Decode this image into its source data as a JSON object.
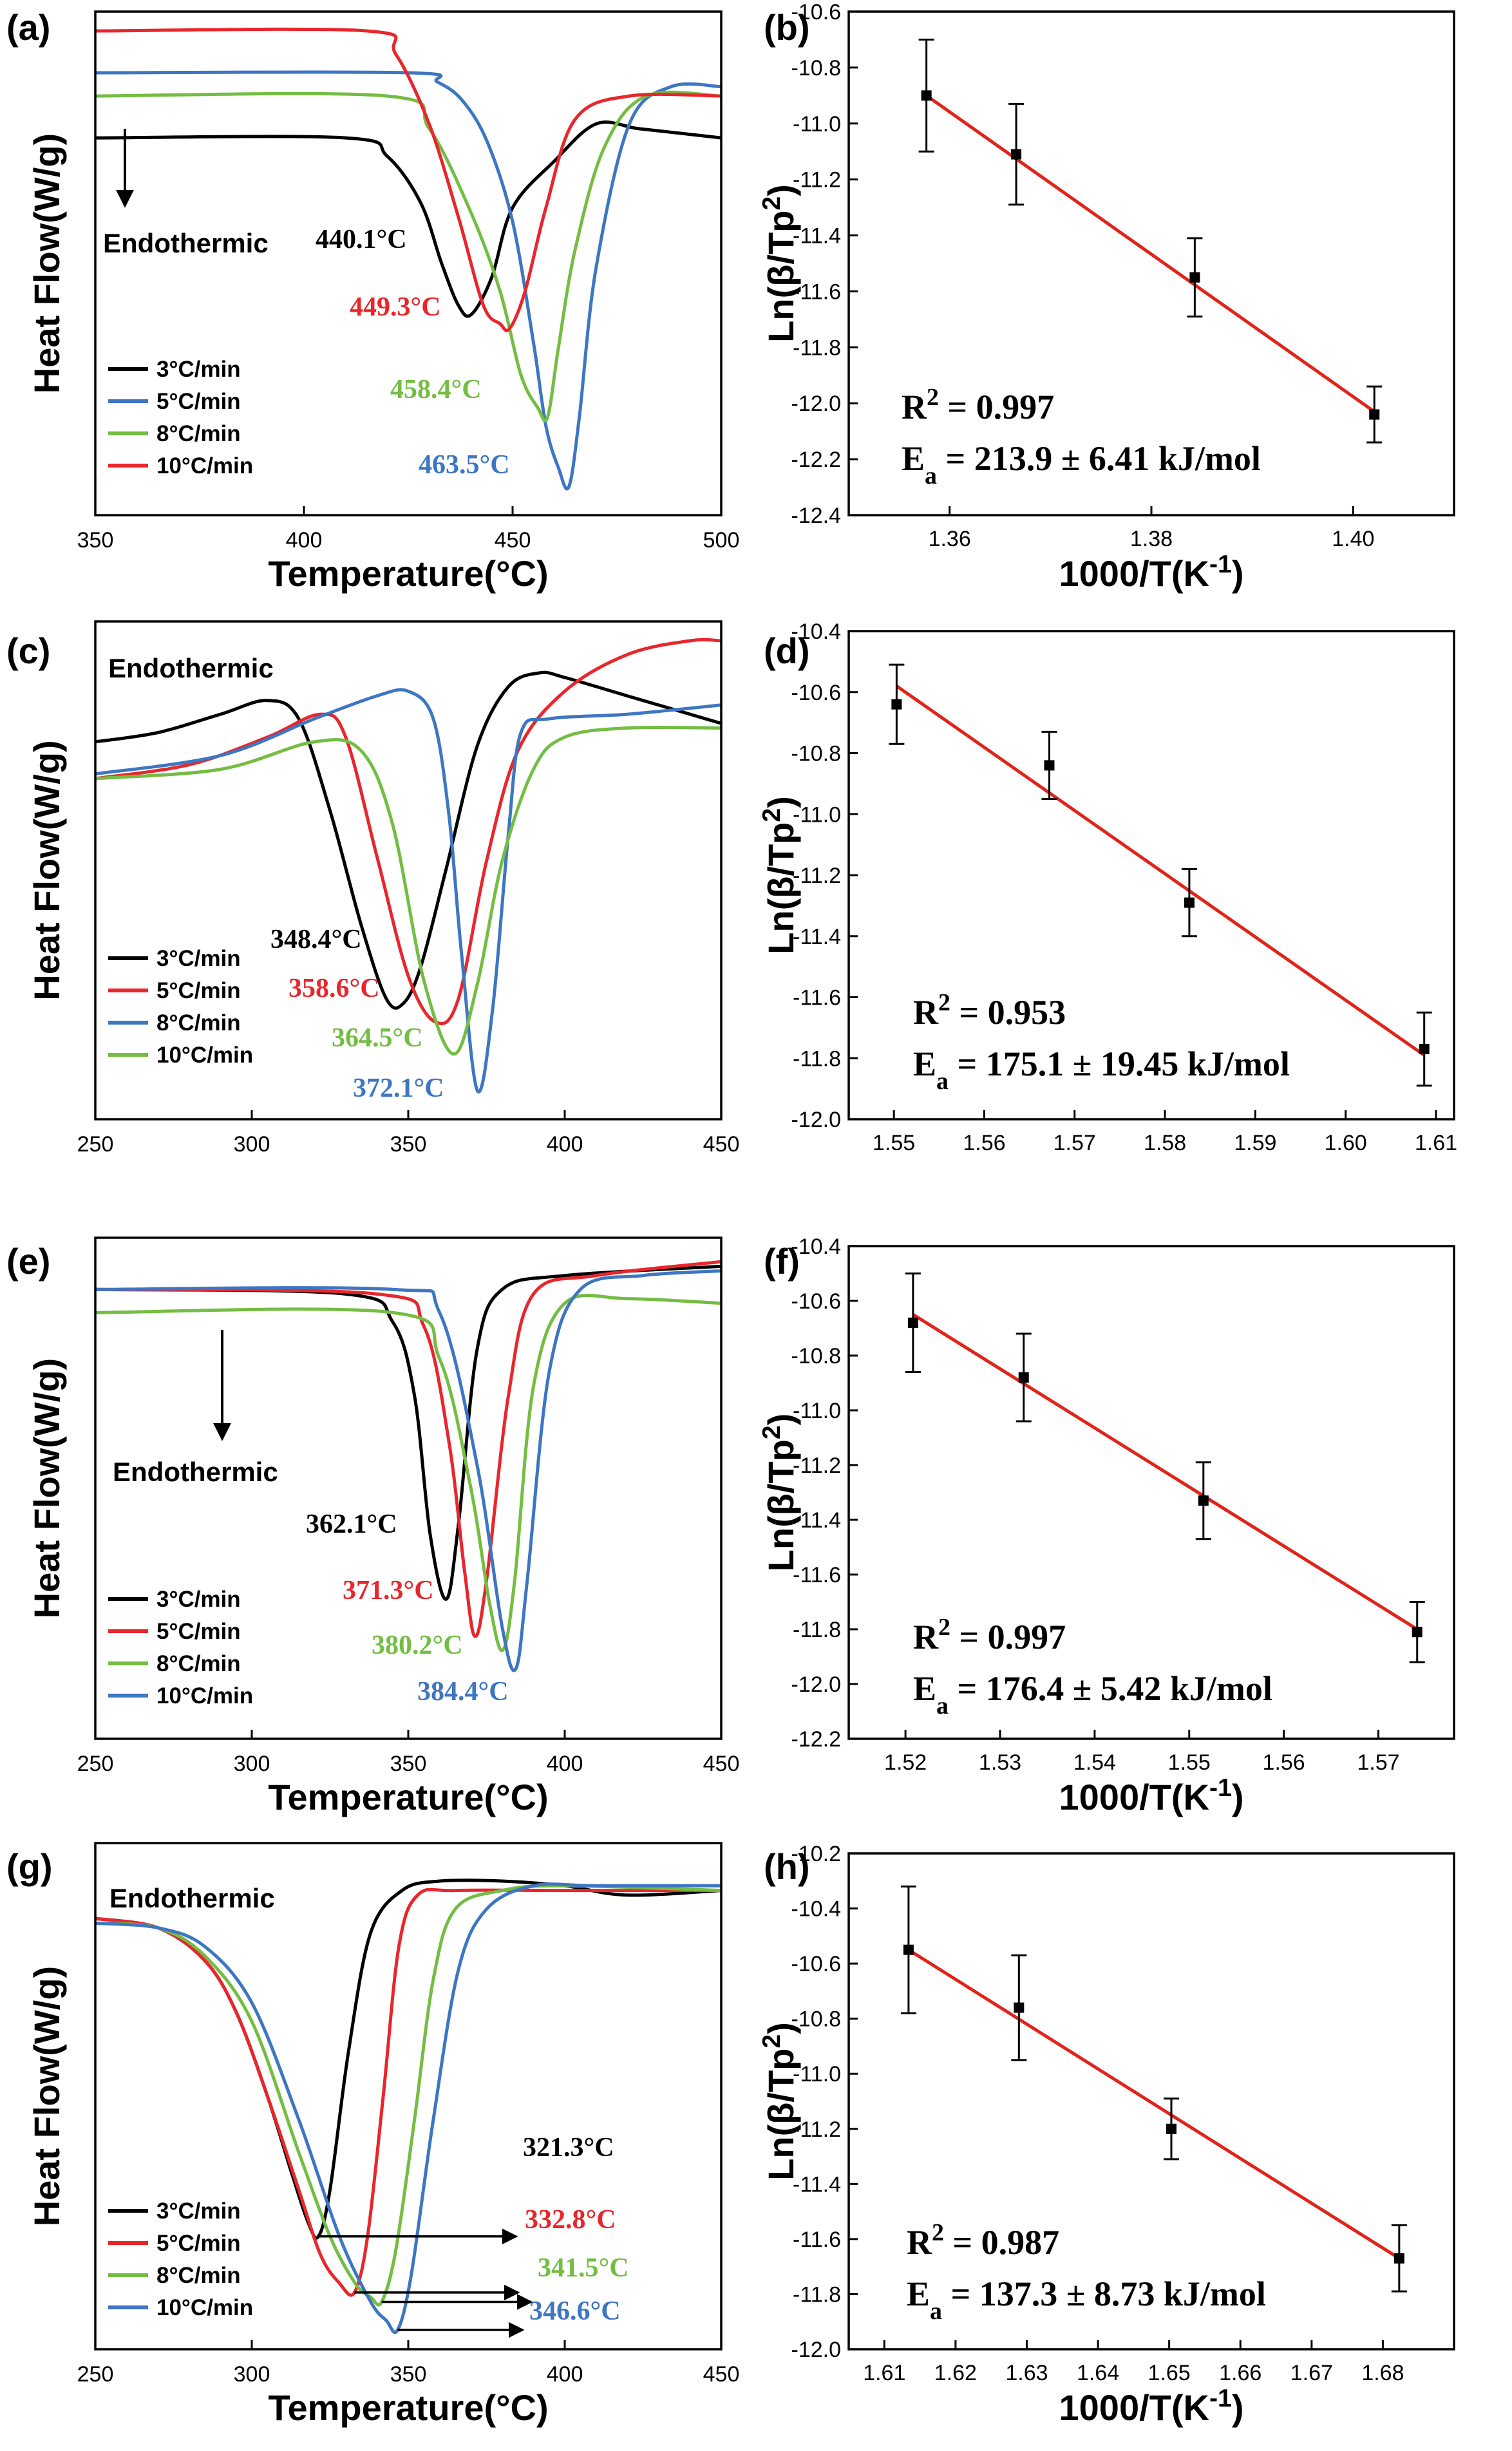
{
  "figure": {
    "background": "#ffffff"
  },
  "colors": {
    "black": "#000000",
    "red": "#e8262c",
    "green": "#74bd43",
    "blue": "#3d76c2",
    "fit": "#e2231a"
  },
  "chart_data": [
    {
      "id": "a",
      "type": "line",
      "panel_label": "(a)",
      "xlabel": "Temperature(°C)",
      "ylabel": "Heat Flow(W/g)",
      "xlim": [
        350,
        500
      ],
      "xticks": [
        350,
        400,
        450,
        500
      ],
      "endothermic": {
        "text": "Endothermic",
        "arrow": "down"
      },
      "legend": [
        "3°C/min",
        "5°C/min",
        "8°C/min",
        "10°C/min"
      ],
      "series": [
        {
          "name": "3°C/min",
          "color": "#000000",
          "peak_x": 440.1,
          "x": [
            350,
            410,
            420,
            428,
            433,
            437,
            440.1,
            445,
            450,
            460,
            470,
            480,
            490,
            500
          ],
          "y": [
            0.77,
            0.77,
            0.73,
            0.63,
            0.5,
            0.41,
            0.39,
            0.47,
            0.62,
            0.72,
            0.8,
            0.79,
            0.78,
            0.77
          ]
        },
        {
          "name": "5°C/min",
          "color": "#3d76c2",
          "peak_x": 463.5,
          "x": [
            350,
            425,
            432,
            438,
            444,
            450,
            455,
            458,
            461,
            463.5,
            466,
            470,
            478,
            488,
            500
          ],
          "y": [
            0.91,
            0.91,
            0.89,
            0.85,
            0.76,
            0.59,
            0.33,
            0.15,
            0.06,
            0.02,
            0.17,
            0.49,
            0.8,
            0.88,
            0.88
          ]
        },
        {
          "name": "8°C/min",
          "color": "#74bd43",
          "peak_x": 458.4,
          "x": [
            350,
            420,
            430,
            440,
            447,
            452,
            456,
            458.4,
            461,
            465,
            472,
            482,
            500
          ],
          "y": [
            0.86,
            0.86,
            0.79,
            0.61,
            0.44,
            0.26,
            0.19,
            0.17,
            0.32,
            0.53,
            0.75,
            0.86,
            0.86
          ]
        },
        {
          "name": "10°C/min",
          "color": "#e8262c",
          "peak_x": 449.3,
          "x": [
            350,
            415,
            422,
            430,
            437,
            443,
            447,
            449.3,
            453,
            458,
            465,
            478,
            500
          ],
          "y": [
            1.0,
            1.0,
            0.95,
            0.8,
            0.6,
            0.41,
            0.37,
            0.36,
            0.44,
            0.62,
            0.81,
            0.86,
            0.86
          ]
        }
      ],
      "annotations": [
        {
          "text": "440.1°C",
          "color": "#000000"
        },
        {
          "text": "449.3°C",
          "color": "#e8262c"
        },
        {
          "text": "458.4°C",
          "color": "#74bd43"
        },
        {
          "text": "463.5°C",
          "color": "#3d76c2"
        }
      ]
    },
    {
      "id": "b",
      "type": "scatter",
      "panel_label": "(b)",
      "xlabel": "1000/T(K⁻¹)",
      "ylabel": "Ln(β/Tp²)",
      "xlim": [
        1.35,
        1.41
      ],
      "ylim": [
        -12.4,
        -10.6
      ],
      "xticks": [
        1.36,
        1.38,
        1.4
      ],
      "xticklabels": [
        "1.36",
        "1.38",
        "1.40"
      ],
      "yticks": [
        -12.4,
        -12.2,
        -12.0,
        -11.8,
        -11.6,
        -11.4,
        -11.2,
        -11.0,
        -10.8,
        -10.6
      ],
      "yticklabels": [
        "-12.4",
        "-12.2",
        "-12.0",
        "-11.8",
        "-11.6",
        "-11.4",
        "-11.2",
        "-11.0",
        "-10.8",
        "-10.6"
      ],
      "x": [
        1.3577,
        1.3666,
        1.3843,
        1.4021
      ],
      "y": [
        -10.9,
        -11.11,
        -11.55,
        -12.04
      ],
      "yerr": [
        0.2,
        0.18,
        0.14,
        0.1
      ],
      "fit": {
        "x": [
          1.3577,
          1.4021
        ],
        "y": [
          -10.9,
          -12.03
        ]
      },
      "r2": "R² = 0.997",
      "ea": "Ea = 213.9 ± 6.41 kJ/mol"
    },
    {
      "id": "c",
      "type": "line",
      "panel_label": "(c)",
      "xlabel": "",
      "ylabel": "Heat Flow(W/g)",
      "xlim": [
        250,
        450
      ],
      "xticks": [
        250,
        300,
        350,
        400,
        450
      ],
      "endothermic": {
        "text": "Endothermic",
        "arrow": "none"
      },
      "legend": [
        "3°C/min",
        "5°C/min",
        "8°C/min",
        "10°C/min"
      ],
      "series": [
        {
          "name": "3°C/min",
          "color": "#000000",
          "peak_x": 348.4,
          "x": [
            250,
            270,
            290,
            305,
            315,
            325,
            335,
            343,
            348.4,
            354,
            362,
            372,
            382,
            392,
            400,
            420,
            450
          ],
          "y": [
            0.78,
            0.8,
            0.84,
            0.87,
            0.83,
            0.63,
            0.38,
            0.22,
            0.21,
            0.29,
            0.5,
            0.77,
            0.9,
            0.93,
            0.92,
            0.88,
            0.82
          ]
        },
        {
          "name": "5°C/min",
          "color": "#e8262c",
          "peak_x": 358.6,
          "x": [
            250,
            280,
            305,
            322,
            330,
            340,
            350,
            358.6,
            366,
            375,
            385,
            400,
            420,
            440,
            450
          ],
          "y": [
            0.7,
            0.73,
            0.79,
            0.84,
            0.79,
            0.53,
            0.27,
            0.17,
            0.22,
            0.52,
            0.76,
            0.89,
            0.97,
            1.0,
            1.0
          ]
        },
        {
          "name": "8°C/min",
          "color": "#3d76c2",
          "peak_x": 372.1,
          "x": [
            250,
            290,
            320,
            340,
            350,
            358,
            363,
            367,
            372.1,
            377,
            382,
            386,
            395,
            420,
            450
          ],
          "y": [
            0.71,
            0.75,
            0.83,
            0.88,
            0.89,
            0.83,
            0.62,
            0.32,
            0.02,
            0.2,
            0.58,
            0.8,
            0.83,
            0.84,
            0.86
          ]
        },
        {
          "name": "10°C/min",
          "color": "#74bd43",
          "peak_x": 364.5,
          "x": [
            250,
            290,
            320,
            335,
            345,
            355,
            364.5,
            372,
            380,
            390,
            400,
            420,
            450
          ],
          "y": [
            0.7,
            0.72,
            0.78,
            0.76,
            0.6,
            0.26,
            0.1,
            0.25,
            0.52,
            0.72,
            0.79,
            0.81,
            0.81
          ]
        }
      ],
      "annotations": [
        {
          "text": "348.4°C",
          "color": "#000000"
        },
        {
          "text": "358.6°C",
          "color": "#e8262c"
        },
        {
          "text": "364.5°C",
          "color": "#74bd43"
        },
        {
          "text": "372.1°C",
          "color": "#3d76c2"
        }
      ]
    },
    {
      "id": "d",
      "type": "scatter",
      "panel_label": "(d)",
      "xlabel": "",
      "ylabel": "Ln(β/Tp²)",
      "xlim": [
        1.545,
        1.612
      ],
      "ylim": [
        -12.0,
        -10.4
      ],
      "xticks": [
        1.55,
        1.56,
        1.57,
        1.58,
        1.59,
        1.6,
        1.61
      ],
      "xticklabels": [
        "1.55",
        "1.56",
        "1.57",
        "1.58",
        "1.59",
        "1.60",
        "1.61"
      ],
      "yticks": [
        -12.0,
        -11.8,
        -11.6,
        -11.4,
        -11.2,
        -11.0,
        -10.8,
        -10.6,
        -10.4
      ],
      "yticklabels": [
        "-12.0",
        "-11.8",
        "-11.6",
        "-11.4",
        "-11.2",
        "-11.0",
        "-10.8",
        "-10.6",
        "-10.4"
      ],
      "x": [
        1.5503,
        1.5672,
        1.5827,
        1.6087
      ],
      "y": [
        -10.64,
        -10.84,
        -11.29,
        -11.77
      ],
      "yerr": [
        0.13,
        0.11,
        0.11,
        0.12
      ],
      "fit": {
        "x": [
          1.5503,
          1.6087
        ],
        "y": [
          -10.58,
          -11.79
        ]
      },
      "r2": "R² = 0.953",
      "ea": "Ea = 175.1 ± 19.45 kJ/mol"
    },
    {
      "id": "e",
      "type": "line",
      "panel_label": "(e)",
      "xlabel": "Temperature(°C)",
      "ylabel": "Heat Flow(W/g)",
      "xlim": [
        250,
        450
      ],
      "xticks": [
        250,
        300,
        350,
        400,
        450
      ],
      "endothermic": {
        "text": "Endothermic",
        "arrow": "down"
      },
      "legend": [
        "3°C/min",
        "5°C/min",
        "8°C/min",
        "10°C/min"
      ],
      "series": [
        {
          "name": "3°C/min",
          "color": "#000000",
          "peak_x": 362.1,
          "x": [
            250,
            330,
            345,
            352,
            357,
            362.1,
            366,
            372,
            380,
            400,
            450
          ],
          "y": [
            0.93,
            0.92,
            0.86,
            0.7,
            0.4,
            0.26,
            0.42,
            0.8,
            0.93,
            0.96,
            0.98
          ]
        },
        {
          "name": "5°C/min",
          "color": "#e8262c",
          "peak_x": 371.3,
          "x": [
            250,
            340,
            355,
            363,
            368,
            371.3,
            375,
            382,
            390,
            410,
            450
          ],
          "y": [
            0.93,
            0.92,
            0.85,
            0.6,
            0.32,
            0.18,
            0.3,
            0.7,
            0.92,
            0.96,
            0.99
          ]
        },
        {
          "name": "8°C/min",
          "color": "#74bd43",
          "peak_x": 380.2,
          "x": [
            250,
            345,
            360,
            370,
            376,
            380.2,
            384,
            390,
            400,
            420,
            450
          ],
          "y": [
            0.88,
            0.88,
            0.78,
            0.5,
            0.25,
            0.15,
            0.3,
            0.72,
            0.9,
            0.91,
            0.9
          ]
        },
        {
          "name": "10°C/min",
          "color": "#3d76c2",
          "peak_x": 384.4,
          "x": [
            250,
            345,
            360,
            372,
            380,
            384.4,
            388,
            395,
            405,
            425,
            450
          ],
          "y": [
            0.93,
            0.93,
            0.88,
            0.55,
            0.2,
            0.11,
            0.3,
            0.75,
            0.93,
            0.96,
            0.97
          ]
        }
      ],
      "annotations": [
        {
          "text": "362.1°C",
          "color": "#000000"
        },
        {
          "text": "371.3°C",
          "color": "#e8262c"
        },
        {
          "text": "380.2°C",
          "color": "#74bd43"
        },
        {
          "text": "384.4°C",
          "color": "#3d76c2"
        }
      ]
    },
    {
      "id": "f",
      "type": "scatter",
      "panel_label": "(f)",
      "xlabel": "1000/T(K⁻¹)",
      "ylabel": "Ln(β/Tp²)",
      "xlim": [
        1.514,
        1.578
      ],
      "ylim": [
        -12.2,
        -10.4
      ],
      "xticks": [
        1.52,
        1.53,
        1.54,
        1.55,
        1.56,
        1.57
      ],
      "xticklabels": [
        "1.52",
        "1.53",
        "1.54",
        "1.55",
        "1.56",
        "1.57"
      ],
      "yticks": [
        -12.2,
        -12.0,
        -11.8,
        -11.6,
        -11.4,
        -11.2,
        -11.0,
        -10.8,
        -10.6,
        -10.4
      ],
      "yticklabels": [
        "-12.2",
        "-12.0",
        "-11.8",
        "-11.6",
        "-11.4",
        "-11.2",
        "-11.0",
        "-10.8",
        "-10.6",
        "-10.4"
      ],
      "x": [
        1.5208,
        1.5325,
        1.5515,
        1.5741
      ],
      "y": [
        -10.68,
        -10.88,
        -11.33,
        -11.81
      ],
      "yerr": [
        0.18,
        0.16,
        0.14,
        0.11
      ],
      "fit": {
        "x": [
          1.5208,
          1.5741
        ],
        "y": [
          -10.65,
          -11.8
        ]
      },
      "r2": "R² = 0.997",
      "ea": "Ea = 176.4 ± 5.42 kJ/mol"
    },
    {
      "id": "g",
      "type": "line",
      "panel_label": "(g)",
      "xlabel": "Temperature(°C)",
      "ylabel": "Heat Flow(W/g)",
      "xlim": [
        250,
        450
      ],
      "xticks": [
        250,
        300,
        350,
        400,
        450
      ],
      "endothermic": {
        "text": "Endothermic",
        "arrow": "none"
      },
      "legend": [
        "3°C/min",
        "5°C/min",
        "8°C/min",
        "10°C/min"
      ],
      "series": [
        {
          "name": "3°C/min",
          "color": "#000000",
          "peak_x": 321.3,
          "x": [
            250,
            270,
            285,
            295,
            305,
            313,
            318,
            321.3,
            325,
            331,
            338,
            348,
            360,
            380,
            400,
            420,
            450
          ],
          "y": [
            0.88,
            0.86,
            0.79,
            0.68,
            0.5,
            0.33,
            0.23,
            0.2,
            0.3,
            0.6,
            0.85,
            0.94,
            0.96,
            0.96,
            0.95,
            0.93,
            0.94
          ]
        },
        {
          "name": "5°C/min",
          "color": "#e8262c",
          "peak_x": 332.8,
          "x": [
            250,
            270,
            285,
            295,
            305,
            315,
            322,
            328,
            332.8,
            337,
            342,
            347,
            353,
            365,
            400,
            450
          ],
          "y": [
            0.88,
            0.86,
            0.79,
            0.68,
            0.5,
            0.3,
            0.16,
            0.1,
            0.08,
            0.2,
            0.5,
            0.82,
            0.93,
            0.94,
            0.94,
            0.94
          ]
        },
        {
          "name": "8°C/min",
          "color": "#74bd43",
          "peak_x": 341.5,
          "x": [
            250,
            270,
            285,
            300,
            315,
            325,
            333,
            338,
            341.5,
            346,
            352,
            358,
            365,
            380,
            400,
            450
          ],
          "y": [
            0.87,
            0.86,
            0.8,
            0.66,
            0.38,
            0.2,
            0.1,
            0.07,
            0.06,
            0.17,
            0.45,
            0.75,
            0.9,
            0.94,
            0.95,
            0.94
          ]
        },
        {
          "name": "10°C/min",
          "color": "#3d76c2",
          "peak_x": 346.6,
          "x": [
            250,
            270,
            285,
            300,
            315,
            328,
            338,
            343,
            346.6,
            351,
            358,
            366,
            375,
            390,
            410,
            450
          ],
          "y": [
            0.87,
            0.86,
            0.82,
            0.7,
            0.45,
            0.2,
            0.06,
            0.02,
            0.0,
            0.12,
            0.45,
            0.77,
            0.9,
            0.95,
            0.95,
            0.95
          ]
        }
      ],
      "annotations": [
        {
          "text": "321.3°C",
          "color": "#000000"
        },
        {
          "text": "332.8°C",
          "color": "#e8262c"
        },
        {
          "text": "341.5°C",
          "color": "#74bd43"
        },
        {
          "text": "346.6°C",
          "color": "#3d76c2"
        }
      ]
    },
    {
      "id": "h",
      "type": "scatter",
      "panel_label": "(h)",
      "xlabel": "1000/T(K⁻¹)",
      "ylabel": "Ln(β/Tp²)",
      "xlim": [
        1.605,
        1.69
      ],
      "ylim": [
        -12.0,
        -10.2
      ],
      "xticks": [
        1.61,
        1.62,
        1.63,
        1.64,
        1.65,
        1.66,
        1.67,
        1.68
      ],
      "xticklabels": [
        "1.61",
        "1.62",
        "1.63",
        "1.64",
        "1.65",
        "1.66",
        "1.67",
        "1.68"
      ],
      "yticks": [
        -12.0,
        -11.8,
        -11.6,
        -11.4,
        -11.2,
        -11.0,
        -10.8,
        -10.6,
        -10.4,
        -10.2
      ],
      "yticklabels": [
        "-12.0",
        "-11.8",
        "-11.6",
        "-11.4",
        "-11.2",
        "-11.0",
        "-10.8",
        "-10.6",
        "-10.4",
        "-10.2"
      ],
      "x": [
        1.6134,
        1.6289,
        1.6503,
        1.6823
      ],
      "y": [
        -10.55,
        -10.76,
        -11.2,
        -11.67
      ],
      "yerr": [
        0.23,
        0.19,
        0.11,
        0.12
      ],
      "fit": {
        "x": [
          1.6134,
          1.6823
        ],
        "y": [
          -10.55,
          -11.67
        ]
      },
      "r2": "R² = 0.987",
      "ea": "Ea = 137.3 ± 8.73 kJ/mol"
    }
  ]
}
